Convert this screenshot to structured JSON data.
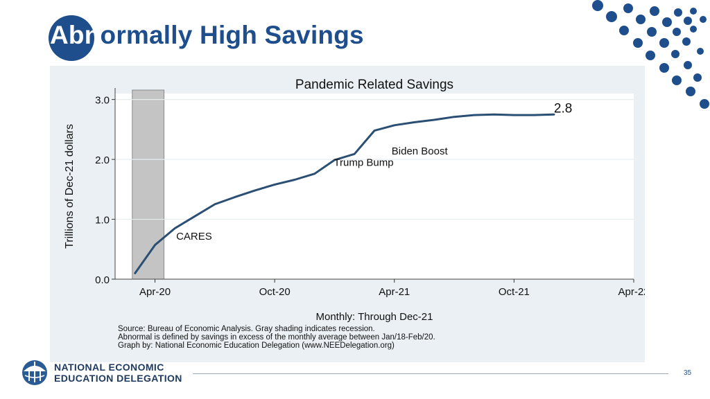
{
  "slide": {
    "title_lead": "Abn",
    "title_rest": "ormally High Savings",
    "slide_number": "35",
    "brand_color": "#1f4e8c",
    "org_line1": "NATIONAL ECONOMIC",
    "org_line2": "EDUCATION DELEGATION",
    "logo_icon": "globe-umbrella-icon",
    "decoration": "dot-pattern"
  },
  "chart_data": {
    "type": "line",
    "title": "Pandemic Related Savings",
    "xlabel": "Monthly: Through Dec-21",
    "ylabel": "Trillions of Dec-21 dollars",
    "x_ticks": [
      "Apr-20",
      "Oct-20",
      "Apr-21",
      "Oct-21",
      "Apr-22"
    ],
    "y_ticks": [
      "0.0",
      "1.0",
      "2.0",
      "3.0"
    ],
    "ylim": [
      0,
      3.1
    ],
    "grid": true,
    "recession_shading": {
      "from": "Mar-20",
      "to": "Apr-20"
    },
    "series": [
      {
        "color": "#2b4f73",
        "x": [
          "Mar-20",
          "Apr-20",
          "May-20",
          "Jun-20",
          "Jul-20",
          "Aug-20",
          "Sep-20",
          "Oct-20",
          "Nov-20",
          "Dec-20",
          "Jan-21",
          "Feb-21",
          "Mar-21",
          "Apr-21",
          "May-21",
          "Jun-21",
          "Jul-21",
          "Aug-21",
          "Sep-21",
          "Oct-21",
          "Nov-21",
          "Dec-21"
        ],
        "values": [
          0.1,
          0.57,
          0.85,
          1.05,
          1.25,
          1.37,
          1.48,
          1.58,
          1.66,
          1.76,
          1.99,
          2.09,
          2.48,
          2.57,
          2.62,
          2.66,
          2.71,
          2.74,
          2.75,
          2.74,
          2.74,
          2.75
        ]
      }
    ],
    "annotations": [
      {
        "text": "2.8",
        "x": "Dec-21",
        "y": 2.85
      },
      {
        "text": "Biden Boost",
        "x": "Apr-21",
        "y": 2.15
      },
      {
        "text": "Trump Bump",
        "x": "Jan-21",
        "y": 1.96
      },
      {
        "text": "CARES",
        "x": "Jun-20",
        "y": 0.73
      }
    ],
    "source_notes": [
      "Source: Bureau of Economic Analysis. Gray shading indicates recession.",
      "Abnormal is defined by savings in excess of the monthly average between Jan/18-Feb/20.",
      "Graph by: National Economic Education Delegation (www.NEEDelegation.org)"
    ]
  }
}
